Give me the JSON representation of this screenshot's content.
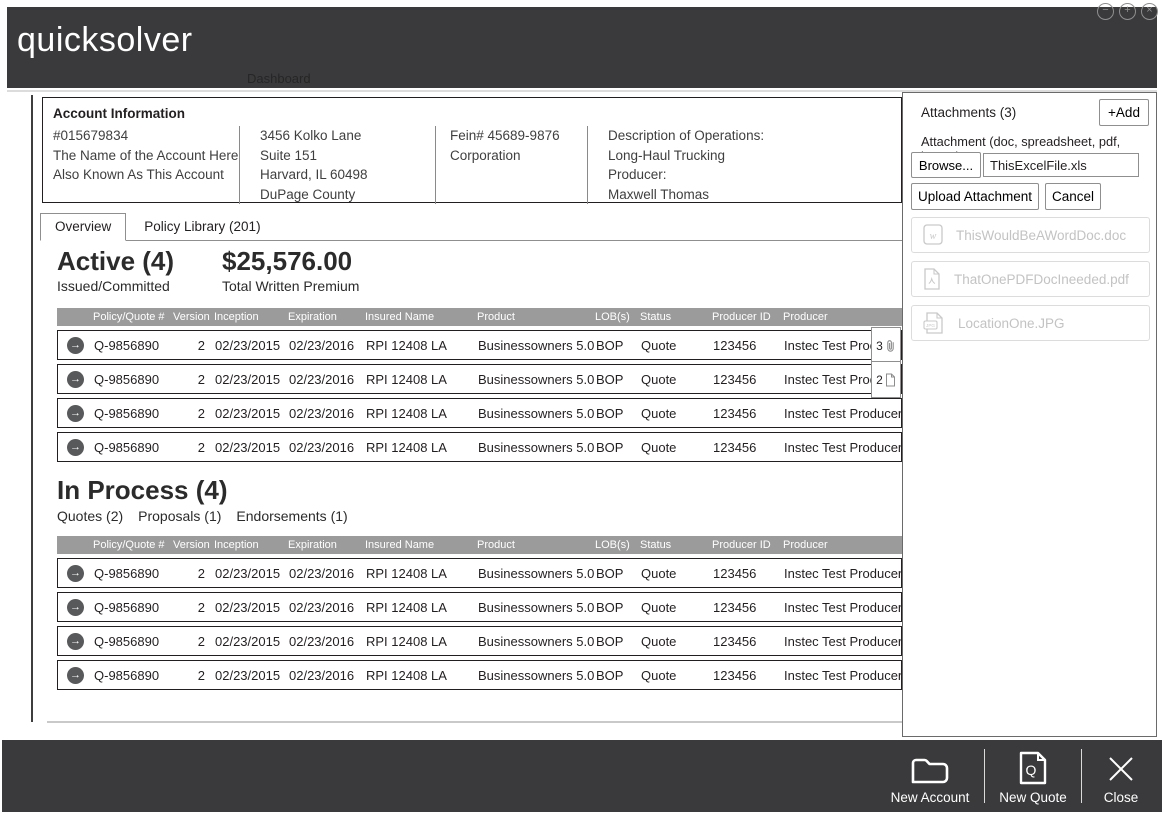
{
  "header": {
    "logo": "quicksolver",
    "nav_dashboard": "Dashboard"
  },
  "icons": {
    "minimize": "−",
    "maximize": "+",
    "close": "×",
    "row_arrow": "→",
    "quote_glyph": "Q"
  },
  "colors": {
    "header_bg": "#3a3a3c",
    "table_header_bg": "#9b9b9b",
    "row_border": "#231f20",
    "muted_text": "#c3c3c3"
  },
  "account_info": {
    "title": "Account Information",
    "col1": {
      "number": "#015679834",
      "name": "The Name of the Account Here",
      "aka": "Also Known As This Account"
    },
    "col2": {
      "line1": "3456 Kolko Lane",
      "line2": "Suite 151",
      "line3": "Harvard, IL 60498",
      "line4": "DuPage County"
    },
    "col3": {
      "line1": "Fein# 45689-9876",
      "line2": "Corporation"
    },
    "col4": {
      "line1": "Description of Operations:",
      "line2": "Long-Haul Trucking",
      "line3": "Producer:",
      "line4": "Maxwell Thomas"
    }
  },
  "tabs": {
    "overview": "Overview",
    "policy_library": "Policy Library (201)"
  },
  "active_section": {
    "title": "Active (4)",
    "subtitle": "Issued/Committed",
    "premium": "$25,576.00",
    "premium_label": "Total Written Premium"
  },
  "in_process_section": {
    "title": "In Process (4)",
    "items": [
      "Quotes (2)",
      "Proposals (1)",
      "Endorsements (1)"
    ]
  },
  "tables": {
    "headers": [
      "Policy/Quote #",
      "Version",
      "Inception",
      "Expiration",
      "Insured Name",
      "Product",
      "LOB(s)",
      "Status",
      "Producer ID",
      "Producer"
    ],
    "active_rows": [
      {
        "cells": [
          "Q-9856890",
          "2",
          "02/23/2015",
          "02/23/2016",
          "RPI 12408 LA",
          "Businessowners 5.0",
          "BOP",
          "Quote",
          "123456",
          "Instec Test Producer"
        ],
        "badge": {
          "count": "3",
          "icon": "paperclip"
        }
      },
      {
        "cells": [
          "Q-9856890",
          "2",
          "02/23/2015",
          "02/23/2016",
          "RPI 12408 LA",
          "Businessowners 5.0",
          "BOP",
          "Quote",
          "123456",
          "Instec Test Producer"
        ],
        "badge": {
          "count": "2",
          "icon": "page"
        }
      },
      {
        "cells": [
          "Q-9856890",
          "2",
          "02/23/2015",
          "02/23/2016",
          "RPI 12408 LA",
          "Businessowners 5.0",
          "BOP",
          "Quote",
          "123456",
          "Instec Test Producer"
        ]
      },
      {
        "cells": [
          "Q-9856890",
          "2",
          "02/23/2015",
          "02/23/2016",
          "RPI 12408 LA",
          "Businessowners 5.0",
          "BOP",
          "Quote",
          "123456",
          "Instec Test Producer"
        ]
      }
    ],
    "in_process_rows": [
      {
        "cells": [
          "Q-9856890",
          "2",
          "02/23/2015",
          "02/23/2016",
          "RPI 12408 LA",
          "Businessowners 5.0",
          "BOP",
          "Quote",
          "123456",
          "Instec Test Producer"
        ]
      },
      {
        "cells": [
          "Q-9856890",
          "2",
          "02/23/2015",
          "02/23/2016",
          "RPI 12408 LA",
          "Businessowners 5.0",
          "BOP",
          "Quote",
          "123456",
          "Instec Test Producer"
        ]
      },
      {
        "cells": [
          "Q-9856890",
          "2",
          "02/23/2015",
          "02/23/2016",
          "RPI 12408 LA",
          "Businessowners 5.0",
          "BOP",
          "Quote",
          "123456",
          "Instec Test Producer"
        ]
      },
      {
        "cells": [
          "Q-9856890",
          "2",
          "02/23/2015",
          "02/23/2016",
          "RPI 12408 LA",
          "Businessowners 5.0",
          "BOP",
          "Quote",
          "123456",
          "Instec Test Producer"
        ]
      }
    ]
  },
  "attachments": {
    "title": "Attachments (3)",
    "add_label": "+Add",
    "type_label": "Attachment (doc, spreadsheet, pdf, image)",
    "browse_label": "Browse...",
    "filename": "ThisExcelFile.xls",
    "upload_label": "Upload Attachment",
    "cancel_label": "Cancel",
    "files": [
      {
        "name": "ThisWouldBeAWordDoc.doc",
        "type": "word"
      },
      {
        "name": "ThatOnePDFDocIneeded.pdf",
        "type": "pdf"
      },
      {
        "name": "LocationOne.JPG",
        "type": "image"
      }
    ]
  },
  "footer": {
    "new_account": "New Account",
    "new_quote": "New Quote",
    "close": "Close"
  }
}
